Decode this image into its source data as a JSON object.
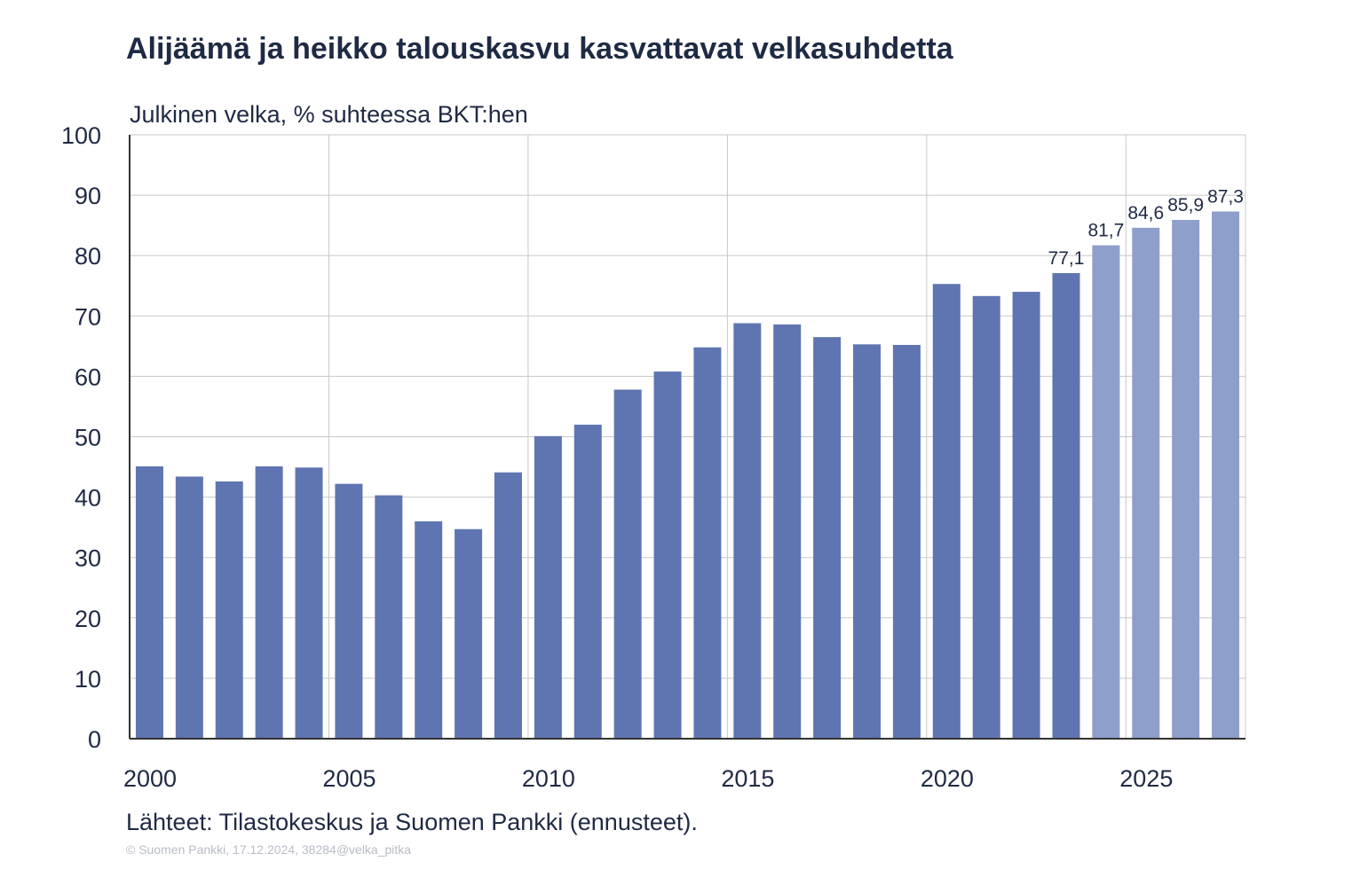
{
  "chart_data": {
    "type": "bar",
    "title": "Alijäämä ja heikko talouskasvu kasvattavat velkasuhdetta",
    "ylabel": "Julkinen velka, % suhteessa BKT:hen",
    "xlabel": "",
    "ylim": [
      0,
      100
    ],
    "yticks": [
      0,
      10,
      20,
      30,
      40,
      50,
      60,
      70,
      80,
      90,
      100
    ],
    "xticks": [
      "2000",
      "2005",
      "2010",
      "2015",
      "2020",
      "2025"
    ],
    "grid": true,
    "categories": [
      2000,
      2001,
      2002,
      2003,
      2004,
      2005,
      2006,
      2007,
      2008,
      2009,
      2010,
      2011,
      2012,
      2013,
      2014,
      2015,
      2016,
      2017,
      2018,
      2019,
      2020,
      2021,
      2022,
      2023,
      2024,
      2025,
      2026,
      2027
    ],
    "values": [
      45.1,
      43.4,
      42.6,
      45.1,
      44.9,
      42.2,
      40.3,
      36.0,
      34.7,
      44.1,
      50.1,
      52.0,
      57.8,
      60.8,
      64.8,
      68.8,
      68.6,
      66.5,
      65.3,
      65.2,
      75.3,
      73.3,
      74.0,
      77.1,
      81.7,
      84.6,
      85.9,
      87.3
    ],
    "forecast_from": 2024,
    "data_labels": [
      {
        "year": 2023,
        "text": "77,1"
      },
      {
        "year": 2024,
        "text": "81,7"
      },
      {
        "year": 2025,
        "text": "84,6"
      },
      {
        "year": 2026,
        "text": "85,9"
      },
      {
        "year": 2027,
        "text": "87,3"
      }
    ],
    "colors": {
      "actual": "#5f75b1",
      "forecast": "#8e9fcb",
      "grid": "#c8c8c8",
      "axis": "#333333",
      "text": "#1f2a44"
    }
  },
  "source": "Lähteet: Tilastokeskus ja Suomen Pankki (ennusteet).",
  "copyright": "© Suomen Pankki, 17.12.2024, 38284@velka_pitka"
}
